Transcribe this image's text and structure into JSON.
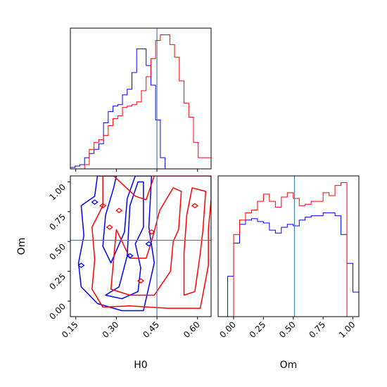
{
  "chart_data": {
    "type": "corner",
    "parameters": [
      "H0",
      "Om"
    ],
    "truths": {
      "H0": 0.45,
      "Om": 0.51
    },
    "truth_color": "#4682b4",
    "series": [
      {
        "color": "#0000ff"
      },
      {
        "color": "#ff0000"
      }
    ],
    "hist_H0": {
      "xlim": [
        0.13,
        0.65
      ],
      "bin_edges": [
        0.13,
        0.1475,
        0.165,
        0.1825,
        0.2,
        0.2175,
        0.235,
        0.2525,
        0.27,
        0.2875,
        0.305,
        0.3225,
        0.34,
        0.3575,
        0.375,
        0.3925,
        0.41,
        0.4275,
        0.445,
        0.4625,
        0.48,
        0.4975,
        0.515,
        0.5325,
        0.55,
        0.5675,
        0.585,
        0.6025,
        0.62,
        0.6375,
        0.65
      ],
      "blue_counts": [
        1,
        2,
        3,
        8,
        11,
        14,
        18,
        33,
        41,
        45,
        46,
        53,
        57,
        69,
        86,
        86,
        74,
        60,
        35,
        8,
        0,
        0,
        0,
        0,
        0,
        0,
        0,
        0,
        0,
        0
      ],
      "red_counts": [
        0,
        0,
        0,
        3,
        14,
        19,
        21,
        24,
        31,
        36,
        38,
        44,
        45,
        46,
        48,
        56,
        66,
        79,
        92,
        96,
        96,
        89,
        80,
        63,
        47,
        37,
        19,
        8,
        8,
        8
      ]
    },
    "hist_Om": {
      "xlim": [
        -0.13,
        1.05
      ],
      "bin_edges": [
        -0.13,
        -0.09,
        -0.05,
        0.0,
        0.05,
        0.1,
        0.15,
        0.2,
        0.25,
        0.3,
        0.35,
        0.4,
        0.45,
        0.5,
        0.55,
        0.6,
        0.65,
        0.7,
        0.75,
        0.8,
        0.85,
        0.9,
        0.95,
        1.0,
        1.05
      ],
      "blue_counts": [
        0,
        0,
        28,
        51,
        64,
        67,
        68,
        66,
        65,
        60,
        58,
        62,
        64,
        63,
        67,
        69,
        70,
        70,
        72,
        72,
        70,
        57,
        37,
        17
      ],
      "red_counts": [
        0,
        0,
        0,
        57,
        67,
        72,
        74,
        80,
        85,
        80,
        76,
        83,
        86,
        82,
        77,
        78,
        80,
        80,
        86,
        84,
        91,
        93,
        0,
        0
      ]
    },
    "joint": {
      "xlim": [
        0.13,
        0.65
      ],
      "ylim": [
        -0.13,
        1.05
      ],
      "blue_contours": [
        [
          [
            0.17,
            0.12
          ],
          [
            0.23,
            -0.02
          ],
          [
            0.32,
            -0.08
          ],
          [
            0.4,
            -0.08
          ],
          [
            0.44,
            0.32
          ],
          [
            0.42,
            0.62
          ],
          [
            0.43,
            1.05
          ],
          [
            0.37,
            1.05
          ],
          [
            0.34,
            0.86
          ],
          [
            0.33,
            0.58
          ],
          [
            0.28,
            0.32
          ],
          [
            0.25,
            0.46
          ],
          [
            0.26,
            0.72
          ],
          [
            0.29,
            0.95
          ],
          [
            0.3,
            1.05
          ],
          [
            0.23,
            1.05
          ],
          [
            0.22,
            0.88
          ],
          [
            0.17,
            0.8
          ],
          [
            0.18,
            0.55
          ],
          [
            0.16,
            0.32
          ]
        ],
        [
          [
            0.26,
            0.05
          ],
          [
            0.32,
            0.02
          ],
          [
            0.38,
            0.08
          ],
          [
            0.39,
            0.28
          ],
          [
            0.37,
            0.48
          ],
          [
            0.4,
            0.62
          ],
          [
            0.4,
            1.0
          ],
          [
            0.38,
            1.0
          ],
          [
            0.35,
            0.8
          ],
          [
            0.34,
            0.38
          ],
          [
            0.31,
            0.12
          ]
        ]
      ],
      "red_contours": [
        [
          [
            0.21,
            0.1
          ],
          [
            0.25,
            -0.05
          ],
          [
            0.35,
            -0.04
          ],
          [
            0.49,
            -0.06
          ],
          [
            0.61,
            -0.06
          ],
          [
            0.64,
            0.3
          ],
          [
            0.64,
            0.6
          ],
          [
            0.65,
            0.85
          ],
          [
            0.65,
            1.05
          ],
          [
            0.52,
            1.05
          ],
          [
            0.44,
            1.05
          ],
          [
            0.41,
            0.85
          ],
          [
            0.37,
            0.88
          ],
          [
            0.29,
            1.05
          ],
          [
            0.25,
            1.05
          ],
          [
            0.25,
            0.8
          ],
          [
            0.21,
            0.62
          ],
          [
            0.22,
            0.35
          ]
        ],
        [
          [
            0.28,
            0.1
          ],
          [
            0.35,
            0.05
          ],
          [
            0.44,
            0.05
          ],
          [
            0.5,
            0.25
          ],
          [
            0.51,
            0.5
          ],
          [
            0.53,
            0.6
          ],
          [
            0.54,
            0.92
          ],
          [
            0.51,
            0.95
          ],
          [
            0.46,
            0.76
          ],
          [
            0.43,
            0.5
          ],
          [
            0.41,
            0.36
          ],
          [
            0.35,
            0.36
          ],
          [
            0.3,
            0.6
          ],
          [
            0.29,
            0.35
          ]
        ],
        [
          [
            0.55,
            0.05
          ],
          [
            0.59,
            0.08
          ],
          [
            0.61,
            0.4
          ],
          [
            0.62,
            0.6
          ],
          [
            0.63,
            0.92
          ],
          [
            0.58,
            0.95
          ],
          [
            0.56,
            0.72
          ],
          [
            0.55,
            0.4
          ]
        ]
      ],
      "blue_islands": [
        [
          0.17,
          0.3
        ],
        [
          0.22,
          0.83
        ],
        [
          0.35,
          0.38
        ],
        [
          0.42,
          0.48
        ]
      ],
      "red_islands": [
        [
          0.25,
          0.8
        ],
        [
          0.31,
          0.76
        ],
        [
          0.275,
          0.62
        ],
        [
          0.39,
          0.17
        ],
        [
          0.43,
          0.58
        ],
        [
          0.59,
          0.8
        ]
      ]
    },
    "xticks_H0": [
      "0.15",
      "0.30",
      "0.45",
      "0.60"
    ],
    "xticks_H0_values": [
      0.15,
      0.3,
      0.45,
      0.6
    ],
    "yticks_Om": [
      "0.00",
      "0.25",
      "0.50",
      "0.75",
      "1.00"
    ],
    "yticks_Om_values": [
      0.0,
      0.25,
      0.5,
      0.75,
      1.0
    ],
    "xticks_Om": [
      "0.00",
      "0.25",
      "0.50",
      "0.75",
      "1.00"
    ],
    "xticks_Om_values": [
      0.0,
      0.25,
      0.5,
      0.75,
      1.0
    ],
    "xlabel_H0": "H0",
    "xlabel_Om": "Om",
    "ylabel_Om": "Om"
  }
}
